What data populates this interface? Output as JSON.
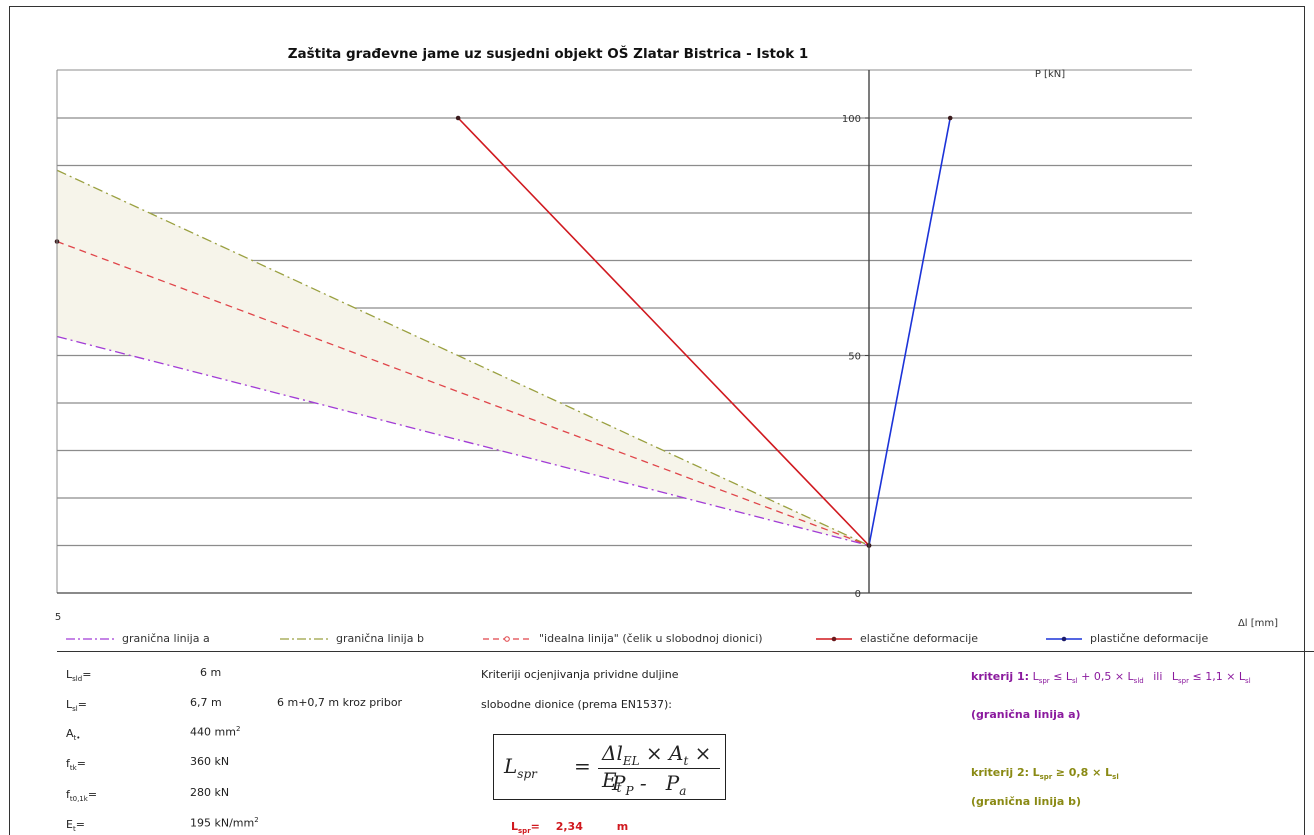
{
  "chart_data": {
    "type": "line",
    "title": "Zaštita građevne jame uz susjedni objekt OŠ Zlatar Bistrica - Istok 1",
    "xlabel": "Δl [mm]",
    "ylabel": "P [kN]",
    "xlim": [
      5,
      -1.9
    ],
    "ylim": [
      0,
      100
    ],
    "x_tick_labels": [
      "5"
    ],
    "y_tick_labels": [
      "100",
      "50",
      "0"
    ],
    "grid": "horizontal",
    "legend_position": "bottom",
    "series": [
      {
        "name": "granična linija a",
        "color": "#a23cd6",
        "dash": "dashdot",
        "x": [
          5.0,
          0.0
        ],
        "y": [
          54,
          10
        ]
      },
      {
        "name": "granična linija b",
        "color": "#9aa040",
        "dash": "dashdot",
        "x": [
          5.0,
          0.0
        ],
        "y": [
          89,
          10
        ]
      },
      {
        "name": "\"idealna linija\" (čelik u slobodnoj dionici)",
        "color": "#e0454a",
        "dash": "dash",
        "marker": true,
        "x": [
          5.0,
          0.0
        ],
        "y": [
          74,
          10
        ]
      },
      {
        "name": "elastične deformacije",
        "color": "#d0191f",
        "dash": "solid",
        "marker": true,
        "x": [
          2.53,
          0.0
        ],
        "y": [
          100,
          10
        ]
      },
      {
        "name": "plastične deformacije",
        "color": "#1c33d8",
        "dash": "solid",
        "marker": true,
        "x": [
          0.0,
          -0.5
        ],
        "y": [
          10,
          100
        ]
      }
    ],
    "band_fill": "#f6f4ea"
  },
  "info": {
    "formula_caption_1": "Kriteriji ocjenjivanja prividne duljine",
    "formula_caption_2": "slobodne dionice (prema EN1537):",
    "params": [
      {
        "sym": "L",
        "sub": "sld",
        "sup": "",
        "eq": "=",
        "value": "6 m",
        "note": ""
      },
      {
        "sym": "L",
        "sub": "sl",
        "sup": "",
        "eq": "=",
        "value": "6,7 m",
        "note": "6 m+0,7 m kroz pribor"
      },
      {
        "sym": "A",
        "sub": "t•",
        "sup": "",
        "eq": "",
        "value": "440 mm",
        "value_sup": "2",
        "note": ""
      },
      {
        "sym": "f",
        "sub": "tk",
        "sup": "",
        "eq": "=",
        "value": "360 kN",
        "note": ""
      },
      {
        "sym": "f",
        "sub": "t0,1k",
        "sup": "",
        "eq": "=",
        "value": "280 kN",
        "note": ""
      },
      {
        "sym": "E",
        "sub": "t",
        "sup": "",
        "eq": "=",
        "value": "195 kN/mm",
        "value_sup": "2",
        "note": ""
      }
    ],
    "lspr_label": "L",
    "lspr_sub": "spr",
    "lspr_eq": "=",
    "lspr_value": "2,34",
    "lspr_unit": "m",
    "kriterij1_label": "kriterij 1:",
    "kriterij1_text": "L",
    "kriterij1_rel": "≤ L",
    "kriterij1_rest": "+ 0,5 × L",
    "kriterij1_ili": "ili",
    "kriterij1_alt": "L",
    "kriterij1_alt_rel": "≤ 1,1 × L",
    "kriterij1_caption": "(granična linija a)",
    "kriterij2_label": "kriterij 2:",
    "kriterij2_text": "L",
    "kriterij2_rel": "≥ 0,8 × L",
    "kriterij2_caption": "(granična linija b)",
    "sub_spr": "spr",
    "sub_sl": "sl",
    "sub_sld": "sld"
  }
}
